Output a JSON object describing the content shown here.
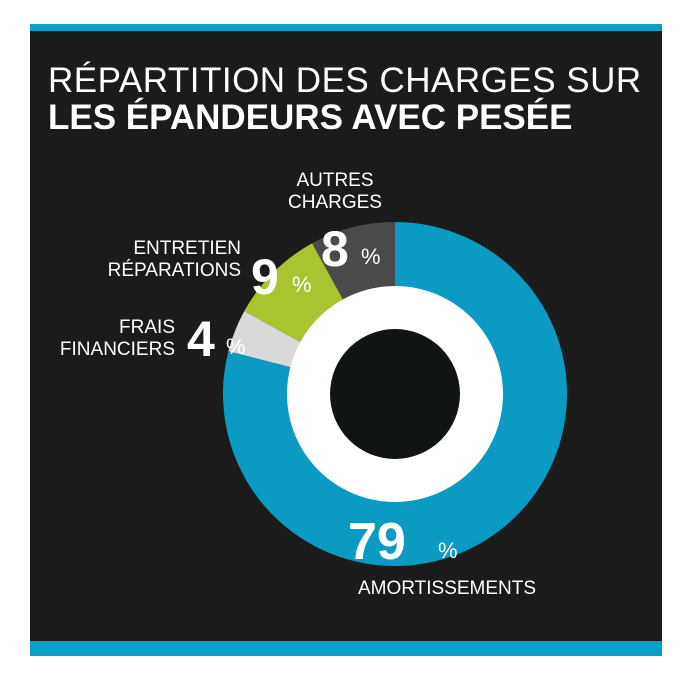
{
  "title": {
    "line1": "RÉPARTITION DES CHARGES SUR",
    "line2": "LES ÉPANDEURS AVEC PESÉE"
  },
  "colors": {
    "background": "#1b1b1b",
    "accent_bar": "#0aa0c7",
    "amortissements": "#0a9ac2",
    "frais_financiers": "#d9d9d9",
    "entretien": "#a8c530",
    "autres": "#4a4a4a",
    "inner_ring": "#ffffff",
    "center": "#111414",
    "text": "#ffffff"
  },
  "chart_data": {
    "type": "pie",
    "title": "RÉPARTITION DES CHARGES SUR LES ÉPANDEURS AVEC PESÉE",
    "categories": [
      "AMORTISSEMENTS",
      "FRAIS FINANCIERS",
      "ENTRETIEN RÉPARATIONS",
      "AUTRES CHARGES"
    ],
    "values": [
      79,
      4,
      9,
      8
    ],
    "unit": "%",
    "slices": [
      {
        "label_lines": [
          "AMORTISSEMENTS"
        ],
        "value": 79,
        "value_text": "79",
        "unit_text": "%",
        "color": "#0a9ac2"
      },
      {
        "label_lines": [
          "FRAIS",
          "FINANCIERS"
        ],
        "value": 4,
        "value_text": "4",
        "unit_text": "%",
        "color": "#d9d9d9"
      },
      {
        "label_lines": [
          "ENTRETIEN",
          "RÉPARATIONS"
        ],
        "value": 9,
        "value_text": "9",
        "unit_text": "%",
        "color": "#a8c530"
      },
      {
        "label_lines": [
          "AUTRES",
          "CHARGES"
        ],
        "value": 8,
        "value_text": "8",
        "unit_text": "%",
        "color": "#4a4a4a"
      }
    ]
  }
}
